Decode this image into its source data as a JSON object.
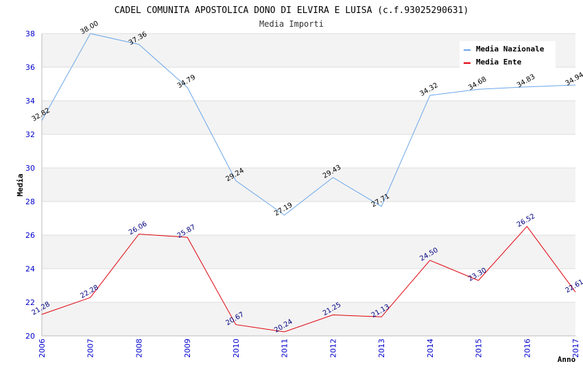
{
  "chart_data": {
    "type": "line",
    "title": "CADEL COMUNITA APOSTOLICA DONO DI ELVIRA E LUISA (c.f.93025290631)",
    "subtitle": "Media Importi",
    "xlabel": "Anno",
    "ylabel": "Media",
    "x": [
      "2006",
      "2007",
      "2008",
      "2009",
      "2010",
      "2011",
      "2012",
      "2013",
      "2014",
      "2015",
      "2016",
      "2017"
    ],
    "ylim": [
      20,
      38
    ],
    "yticks": [
      20,
      22,
      24,
      26,
      28,
      30,
      32,
      34,
      36,
      38
    ],
    "grid": "horizontal, alternating bands",
    "legend_position": "top-right",
    "series": [
      {
        "name": "Media Nazionale",
        "color": "#6aa6e8",
        "label_color": "#000000",
        "values": [
          32.82,
          38.0,
          37.36,
          34.79,
          29.24,
          27.19,
          29.43,
          27.71,
          34.32,
          34.68,
          34.83,
          34.94
        ],
        "labels": [
          "32.82",
          "38.00",
          "37.36",
          "34.79",
          "29.24",
          "27.19",
          "29.43",
          "27.71",
          "34.32",
          "34.68",
          "34.83",
          "34.94"
        ]
      },
      {
        "name": "Media Ente",
        "color": "#e0000a",
        "label_color": "#000080",
        "values": [
          21.28,
          22.28,
          26.06,
          25.87,
          20.67,
          20.24,
          21.25,
          21.13,
          24.5,
          23.3,
          26.52,
          22.61
        ],
        "labels": [
          "21.28",
          "22.28",
          "26.06",
          "25.87",
          "20.67",
          "20.24",
          "21.25",
          "21.13",
          "24.50",
          "23.30",
          "26.52",
          "22.61"
        ]
      }
    ]
  }
}
